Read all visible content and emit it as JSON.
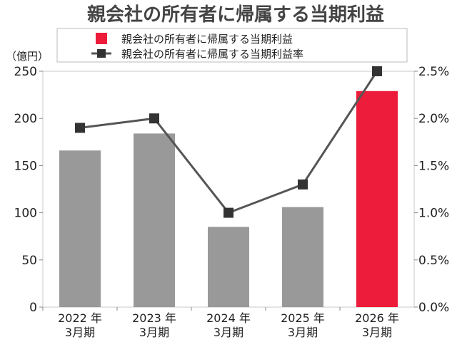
{
  "chart_data": {
    "type": "bar",
    "title": "親会社の所有者に帰属する当期利益",
    "unit_left": "（億円）",
    "categories": [
      [
        "2022 年",
        "3月期"
      ],
      [
        "2023 年",
        "3月期"
      ],
      [
        "2024 年",
        "3月期"
      ],
      [
        "2025 年",
        "3月期"
      ],
      [
        "2026 年",
        "3月期"
      ]
    ],
    "series": [
      {
        "name": "親会社の所有者に帰属する当期利益",
        "kind": "bar",
        "axis": "left",
        "values": [
          166,
          184,
          85,
          106,
          229
        ],
        "colors": [
          "#999999",
          "#999999",
          "#999999",
          "#999999",
          "#ed1c3a"
        ]
      },
      {
        "name": "親会社の所有者に帰属する当期利益率",
        "kind": "line",
        "axis": "right",
        "values": [
          1.9,
          2.0,
          1.0,
          1.3,
          2.5
        ],
        "color": "#555555",
        "marker_color": "#333333"
      }
    ],
    "y_left": {
      "ylim": [
        0,
        250
      ],
      "ticks": [
        0,
        50,
        100,
        150,
        200,
        250
      ],
      "tick_labels": [
        "0",
        "50",
        "100",
        "150",
        "200",
        "250"
      ]
    },
    "y_right": {
      "ylim": [
        0,
        2.5
      ],
      "ticks": [
        0,
        0.5,
        1.0,
        1.5,
        2.0,
        2.5
      ],
      "tick_labels": [
        "0.0%",
        "0.5%",
        "1.0%",
        "1.5%",
        "2.0%",
        "2.5%"
      ]
    },
    "grid": false,
    "legend_position": "top"
  }
}
